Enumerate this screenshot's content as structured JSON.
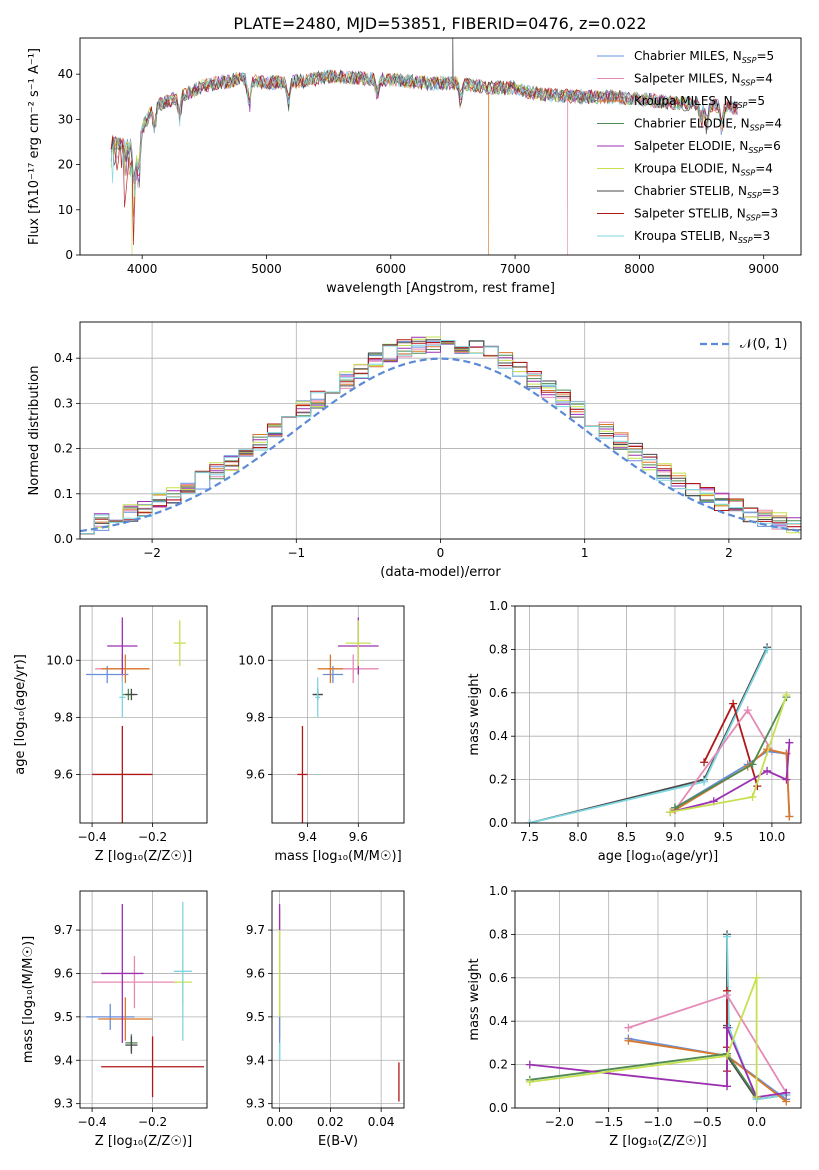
{
  "title": "PLATE=2480, MJD=53851, FIBERID=0476, z=0.022",
  "palette": {
    "Chabrier MILES": "#6a8fd8",
    "Salpeter MILES": "#e58ab4",
    "Kroupa MILES": "#d9782a",
    "Chabrier ELODIE": "#4f8a55",
    "Salpeter ELODIE": "#9b30b0",
    "Kroupa ELODIE": "#c5e050",
    "Chabrier STELIB": "#4a4a4a",
    "Salpeter STELIB": "#b01818",
    "Kroupa STELIB": "#7ed6e0"
  },
  "chart_data": [
    {
      "type": "line",
      "name": "spectrum",
      "xlabel": "wavelength [Angstrom, rest frame]",
      "ylabel": "Flux [fλ10⁻¹⁷ erg cm⁻² s⁻¹ A⁻¹]",
      "xlim": [
        3500,
        9300
      ],
      "ylim": [
        0,
        48
      ],
      "xticks": [
        "4000",
        "5000",
        "6000",
        "7000",
        "8000",
        "9000"
      ],
      "yticks": [
        "0",
        "10",
        "20",
        "30",
        "40"
      ],
      "legend": [
        {
          "name": "Chabrier MILES",
          "text": "Chabrier MILES, N",
          "sub": "SSP",
          "tail": "=5"
        },
        {
          "name": "Salpeter MILES",
          "text": "Salpeter MILES, N",
          "sub": "SSP",
          "tail": "=4"
        },
        {
          "name": "Kroupa MILES",
          "text": "Kroupa MILES, N",
          "sub": "SSP",
          "tail": "=5"
        },
        {
          "name": "Chabrier ELODIE",
          "text": "Chabrier ELODIE, N",
          "sub": "SSP",
          "tail": "=4"
        },
        {
          "name": "Salpeter ELODIE",
          "text": "Salpeter ELODIE, N",
          "sub": "SSP",
          "tail": "=6"
        },
        {
          "name": "Kroupa ELODIE",
          "text": "Kroupa ELODIE, N",
          "sub": "SSP",
          "tail": "=4"
        },
        {
          "name": "Chabrier STELIB",
          "text": "Chabrier STELIB, N",
          "sub": "SSP",
          "tail": "=3"
        },
        {
          "name": "Salpeter STELIB",
          "text": "Salpeter STELIB, N",
          "sub": "SSP",
          "tail": "=3"
        },
        {
          "name": "Kroupa STELIB",
          "text": "Kroupa STELIB, N",
          "sub": "SSP",
          "tail": "=3"
        }
      ],
      "continuum": [
        [
          3750,
          25
        ],
        [
          3900,
          24
        ],
        [
          4000,
          28
        ],
        [
          4100,
          33
        ],
        [
          4300,
          35
        ],
        [
          4500,
          37.5
        ],
        [
          4800,
          39
        ],
        [
          5000,
          38
        ],
        [
          5300,
          38.5
        ],
        [
          5500,
          39.5
        ],
        [
          5800,
          39
        ],
        [
          6000,
          38.8
        ],
        [
          6300,
          38
        ],
        [
          6500,
          38
        ],
        [
          6800,
          37
        ],
        [
          7000,
          37
        ],
        [
          7200,
          35.5
        ],
        [
          7500,
          35
        ],
        [
          7800,
          35
        ],
        [
          8000,
          34.5
        ],
        [
          8300,
          33.5
        ],
        [
          8600,
          33
        ],
        [
          8800,
          32.5
        ]
      ],
      "absorption": [
        [
          3934,
          10
        ],
        [
          3969,
          9
        ],
        [
          4101,
          5
        ],
        [
          4300,
          5
        ],
        [
          4861,
          6
        ],
        [
          5175,
          5
        ],
        [
          5890,
          4
        ],
        [
          6563,
          4
        ],
        [
          8498,
          4
        ],
        [
          8542,
          5
        ],
        [
          8662,
          5
        ]
      ],
      "cutoffs": [
        {
          "series": "Kroupa ELODIE",
          "x": 3920
        },
        {
          "series": "Kroupa MILES",
          "x": 6790
        },
        {
          "series": "Salpeter MILES",
          "x": 7420
        }
      ]
    },
    {
      "type": "histogram",
      "name": "residuals",
      "xlabel": "(data-model)/error",
      "ylabel": "Normed distribution",
      "xlim": [
        -2.5,
        2.5
      ],
      "ylim": [
        0,
        0.48
      ],
      "xticks": [
        "−2",
        "−1",
        "0",
        "1",
        "2"
      ],
      "yticks": [
        "0.0",
        "0.1",
        "0.2",
        "0.3",
        "0.4"
      ],
      "bin_width": 0.1,
      "bin_start": -2.5,
      "gaussian": {
        "label": "𝒩(0, 1)",
        "mean": 0,
        "sigma": 1
      }
    },
    {
      "type": "scatter",
      "name": "age-vs-Z",
      "xlabel": "Z [log₁₀(Z/Z☉)]",
      "ylabel": "age  [log₁₀(age/yr)]",
      "xlim": [
        -0.44,
        -0.02
      ],
      "ylim": [
        9.43,
        10.19
      ],
      "xticks": [
        "−0.4",
        "−0.2"
      ],
      "yticks": [
        "9.6",
        "9.8",
        "10.0"
      ],
      "points": [
        {
          "series": "Chabrier MILES",
          "x": -0.35,
          "y": 9.95,
          "xerr": 0.07,
          "yerr": 0.03
        },
        {
          "series": "Salpeter MILES",
          "x": -0.3,
          "y": 9.97,
          "xerr": 0.09,
          "yerr": 0.05
        },
        {
          "series": "Kroupa MILES",
          "x": -0.29,
          "y": 9.97,
          "xerr": 0.08,
          "yerr": 0.05
        },
        {
          "series": "Chabrier ELODIE",
          "x": -0.28,
          "y": 9.88,
          "xerr": 0.02,
          "yerr": 0.02
        },
        {
          "series": "Salpeter ELODIE",
          "x": -0.3,
          "y": 10.05,
          "xerr": 0.05,
          "yerr": 0.1
        },
        {
          "series": "Kroupa ELODIE",
          "x": -0.11,
          "y": 10.06,
          "xerr": 0.02,
          "yerr": 0.08
        },
        {
          "series": "Chabrier STELIB",
          "x": -0.27,
          "y": 9.88,
          "xerr": 0.02,
          "yerr": 0.02
        },
        {
          "series": "Salpeter STELIB",
          "x": -0.3,
          "y": 9.6,
          "xerr": 0.1,
          "yerr": 0.17
        },
        {
          "series": "Kroupa STELIB",
          "x": -0.3,
          "y": 9.87,
          "xerr": 0.01,
          "yerr": 0.07
        }
      ]
    },
    {
      "type": "scatter",
      "name": "age-vs-mass",
      "xlabel": "mass [log₁₀(M/M☉)]",
      "ylabel": "",
      "xlim": [
        9.26,
        9.78
      ],
      "ylim": [
        9.43,
        10.19
      ],
      "xticks": [
        "9.4",
        "9.6"
      ],
      "yticks": [
        "9.6",
        "9.8",
        "10.0"
      ],
      "points": [
        {
          "series": "Chabrier MILES",
          "x": 9.5,
          "y": 9.95,
          "xerr": 0.04,
          "yerr": 0.03
        },
        {
          "series": "Salpeter MILES",
          "x": 9.58,
          "y": 9.97,
          "xerr": 0.1,
          "yerr": 0.05
        },
        {
          "series": "Kroupa MILES",
          "x": 9.49,
          "y": 9.97,
          "xerr": 0.05,
          "yerr": 0.05
        },
        {
          "series": "Chabrier ELODIE",
          "x": 9.44,
          "y": 9.88,
          "xerr": 0.02,
          "yerr": 0.02
        },
        {
          "series": "Salpeter ELODIE",
          "x": 9.6,
          "y": 10.05,
          "xerr": 0.08,
          "yerr": 0.1
        },
        {
          "series": "Kroupa ELODIE",
          "x": 9.6,
          "y": 10.06,
          "xerr": 0.05,
          "yerr": 0.08
        },
        {
          "series": "Chabrier STELIB",
          "x": 9.44,
          "y": 9.88,
          "xerr": 0.02,
          "yerr": 0.02
        },
        {
          "series": "Salpeter STELIB",
          "x": 9.38,
          "y": 9.6,
          "xerr": 0.02,
          "yerr": 0.17
        },
        {
          "series": "Kroupa STELIB",
          "x": 9.44,
          "y": 9.87,
          "xerr": 0.01,
          "yerr": 0.07
        }
      ]
    },
    {
      "type": "line",
      "name": "mass-weight-vs-age",
      "xlabel": "age  [log₁₀(age/yr)]",
      "ylabel": "mass weight",
      "xlim": [
        7.35,
        10.3
      ],
      "ylim": [
        0,
        1
      ],
      "grid": true,
      "xticks": [
        "7.5",
        "8.0",
        "8.5",
        "9.0",
        "9.5",
        "10.0"
      ],
      "yticks": [
        "0.0",
        "0.2",
        "0.4",
        "0.6",
        "0.8",
        "1.0"
      ],
      "series": [
        {
          "name": "Chabrier STELIB",
          "points": [
            [
              7.5,
              0.0
            ],
            [
              9.3,
              0.2
            ],
            [
              9.95,
              0.81
            ]
          ]
        },
        {
          "name": "Kroupa STELIB",
          "points": [
            [
              7.5,
              0.0
            ],
            [
              9.3,
              0.19
            ],
            [
              9.95,
              0.8
            ]
          ]
        },
        {
          "name": "Salpeter STELIB",
          "points": [
            [
              9.3,
              0.28
            ],
            [
              9.6,
              0.55
            ],
            [
              9.85,
              0.17
            ]
          ]
        },
        {
          "name": "Salpeter MILES",
          "points": [
            [
              9.0,
              0.06
            ],
            [
              9.75,
              0.52
            ],
            [
              10.0,
              0.33
            ]
          ]
        },
        {
          "name": "Chabrier MILES",
          "points": [
            [
              9.0,
              0.07
            ],
            [
              9.75,
              0.27
            ],
            [
              9.95,
              0.33
            ],
            [
              10.15,
              0.32
            ],
            [
              10.18,
              0.03
            ]
          ]
        },
        {
          "name": "Kroupa MILES",
          "points": [
            [
              9.0,
              0.06
            ],
            [
              9.75,
              0.26
            ],
            [
              9.95,
              0.34
            ],
            [
              10.15,
              0.32
            ],
            [
              10.18,
              0.03
            ]
          ]
        },
        {
          "name": "Chabrier ELODIE",
          "points": [
            [
              9.0,
              0.07
            ],
            [
              9.8,
              0.27
            ],
            [
              10.15,
              0.58
            ]
          ]
        },
        {
          "name": "Salpeter ELODIE",
          "points": [
            [
              8.95,
              0.05
            ],
            [
              9.4,
              0.1
            ],
            [
              9.95,
              0.24
            ],
            [
              10.15,
              0.2
            ],
            [
              10.18,
              0.37
            ]
          ]
        },
        {
          "name": "Kroupa ELODIE",
          "points": [
            [
              8.95,
              0.05
            ],
            [
              9.8,
              0.12
            ],
            [
              10.15,
              0.59
            ]
          ]
        }
      ]
    },
    {
      "type": "scatter",
      "name": "mass-vs-Z",
      "xlabel": "Z [log₁₀(Z/Z☉)]",
      "ylabel": "mass [log₁₀(M/M☉)]",
      "xlim": [
        -0.44,
        -0.02
      ],
      "ylim": [
        9.29,
        9.79
      ],
      "xticks": [
        "−0.4",
        "−0.2"
      ],
      "yticks": [
        "9.3",
        "9.4",
        "9.5",
        "9.6",
        "9.7"
      ],
      "points": [
        {
          "series": "Chabrier MILES",
          "x": -0.34,
          "y": 9.5,
          "xerr": 0.08,
          "yerr": 0.03
        },
        {
          "series": "Salpeter MILES",
          "x": -0.26,
          "y": 9.58,
          "xerr": 0.14,
          "yerr": 0.06
        },
        {
          "series": "Kroupa MILES",
          "x": -0.29,
          "y": 9.495,
          "xerr": 0.09,
          "yerr": 0.05
        },
        {
          "series": "Chabrier ELODIE",
          "x": -0.27,
          "y": 9.44,
          "xerr": 0.02,
          "yerr": 0.02
        },
        {
          "series": "Salpeter ELODIE",
          "x": -0.3,
          "y": 9.6,
          "xerr": 0.07,
          "yerr": 0.16
        },
        {
          "series": "Kroupa ELODIE",
          "x": -0.1,
          "y": 9.58,
          "xerr": 0.03,
          "yerr": 0.05
        },
        {
          "series": "Chabrier STELIB",
          "x": -0.27,
          "y": 9.435,
          "xerr": 0.02,
          "yerr": 0.02
        },
        {
          "series": "Salpeter STELIB",
          "x": -0.2,
          "y": 9.385,
          "xerr": 0.17,
          "yerr": 0.07
        },
        {
          "series": "Kroupa STELIB",
          "x": -0.1,
          "y": 9.605,
          "xerr": 0.03,
          "yerr": 0.16
        }
      ]
    },
    {
      "type": "scatter",
      "name": "mass-vs-ebv",
      "xlabel": "E(B-V)",
      "ylabel": "",
      "xlim": [
        -0.003,
        0.049
      ],
      "ylim": [
        9.29,
        9.79
      ],
      "xticks": [
        "0.00",
        "0.02",
        "0.04"
      ],
      "yticks": [
        "9.3",
        "9.4",
        "9.5",
        "9.6",
        "9.7"
      ],
      "points": [
        {
          "series": "Salpeter MILES",
          "x": 0.0,
          "y": 9.6,
          "xerr": 0,
          "yerr": 0.15
        },
        {
          "series": "Kroupa ELODIE",
          "x": 0.0,
          "y": 9.6,
          "xerr": 0,
          "yerr": 0.13
        },
        {
          "series": "Salpeter ELODIE",
          "x": 0.0,
          "y": 9.73,
          "xerr": 0,
          "yerr": 0.03
        },
        {
          "series": "Chabrier MILES",
          "x": 0.0,
          "y": 9.45,
          "xerr": 0,
          "yerr": 0.05
        },
        {
          "series": "Kroupa STELIB",
          "x": 0.0,
          "y": 9.42,
          "xerr": 0,
          "yerr": 0.02
        },
        {
          "series": "Salpeter STELIB",
          "x": 0.047,
          "y": 9.35,
          "xerr": 0,
          "yerr": 0.045
        }
      ]
    },
    {
      "type": "line",
      "name": "mass-weight-vs-Z",
      "xlabel": "Z [log₁₀(Z/Z☉)]",
      "ylabel": "mass weight",
      "xlim": [
        -2.45,
        0.45
      ],
      "ylim": [
        0,
        1
      ],
      "grid": true,
      "xticks": [
        "−2.0",
        "−1.5",
        "−1.0",
        "−0.5",
        "0.0"
      ],
      "yticks": [
        "0.0",
        "0.2",
        "0.4",
        "0.6",
        "0.8",
        "1.0"
      ],
      "series": [
        {
          "name": "Chabrier STELIB",
          "points": [
            [
              -0.3,
              0.8
            ],
            [
              -0.3,
              0.38
            ],
            [
              -0.3,
              0.24
            ],
            [
              0.0,
              0.04
            ],
            [
              0.3,
              0.06
            ]
          ]
        },
        {
          "name": "Kroupa STELIB",
          "points": [
            [
              -0.3,
              0.79
            ],
            [
              -0.28,
              0.37
            ],
            [
              0.0,
              0.04
            ],
            [
              0.3,
              0.06
            ]
          ]
        },
        {
          "name": "Salpeter STELIB",
          "points": [
            [
              -0.3,
              0.54
            ],
            [
              -0.3,
              0.28
            ],
            [
              -0.3,
              0.17
            ]
          ]
        },
        {
          "name": "Salpeter MILES",
          "points": [
            [
              -1.3,
              0.37
            ],
            [
              -0.3,
              0.52
            ],
            [
              0.3,
              0.07
            ]
          ]
        },
        {
          "name": "Chabrier MILES",
          "points": [
            [
              -1.3,
              0.32
            ],
            [
              -0.3,
              0.24
            ],
            [
              0.3,
              0.04
            ]
          ]
        },
        {
          "name": "Kroupa MILES",
          "points": [
            [
              -1.3,
              0.31
            ],
            [
              -0.3,
              0.24
            ],
            [
              0.3,
              0.03
            ]
          ]
        },
        {
          "name": "Chabrier ELODIE",
          "points": [
            [
              -2.3,
              0.13
            ],
            [
              -0.3,
              0.25
            ],
            [
              0.0,
              0.05
            ]
          ]
        },
        {
          "name": "Salpeter ELODIE",
          "points": [
            [
              -2.3,
              0.2
            ],
            [
              -0.3,
              0.1
            ],
            [
              -0.3,
              0.37
            ],
            [
              0.0,
              0.05
            ],
            [
              0.3,
              0.07
            ]
          ]
        },
        {
          "name": "Kroupa ELODIE",
          "points": [
            [
              -2.3,
              0.12
            ],
            [
              -0.3,
              0.24
            ],
            [
              0.0,
              0.6
            ],
            [
              0.0,
              0.05
            ]
          ]
        }
      ]
    }
  ]
}
